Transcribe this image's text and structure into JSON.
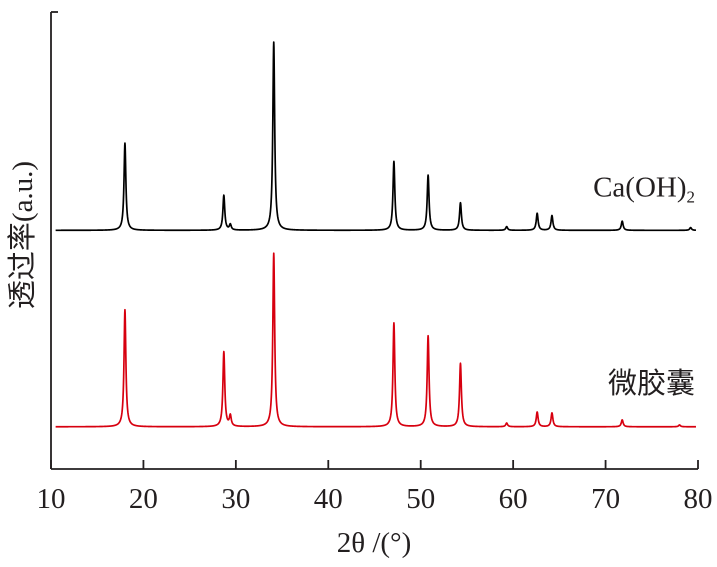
{
  "chart_data": {
    "type": "line",
    "title": "",
    "xlabel": "2θ /(°)",
    "ylabel": "透过率(a.u.)",
    "xlim": [
      10,
      80
    ],
    "ylim": [
      0,
      100
    ],
    "xticks": [
      "10",
      "20",
      "30",
      "40",
      "50",
      "60",
      "70",
      "80"
    ],
    "yticks": [],
    "grid": false,
    "legend": "none (series labelled at right end of each trace)",
    "series": [
      {
        "name": "Ca(OH)2",
        "label_main": "Ca(OH)",
        "label_sub": "2",
        "color": "#000000",
        "baseline": 52,
        "peaks": [
          {
            "x": 18.0,
            "y": 71
          },
          {
            "x": 28.7,
            "y": 59.6
          },
          {
            "x": 29.4,
            "y": 53.2
          },
          {
            "x": 34.1,
            "y": 93
          },
          {
            "x": 47.1,
            "y": 67
          },
          {
            "x": 50.8,
            "y": 64
          },
          {
            "x": 54.3,
            "y": 58
          },
          {
            "x": 59.3,
            "y": 52.8
          },
          {
            "x": 62.6,
            "y": 55.7
          },
          {
            "x": 64.2,
            "y": 55.2
          },
          {
            "x": 71.8,
            "y": 54
          },
          {
            "x": 79.2,
            "y": 52.6
          }
        ]
      },
      {
        "name": "微胶囊",
        "label_main": "微胶囊",
        "label_sub": "",
        "color": "#d7000f",
        "baseline": 9.2,
        "peaks": [
          {
            "x": 18.0,
            "y": 34.7
          },
          {
            "x": 28.7,
            "y": 25.5
          },
          {
            "x": 29.4,
            "y": 11.5
          },
          {
            "x": 34.1,
            "y": 47
          },
          {
            "x": 47.1,
            "y": 31.8
          },
          {
            "x": 50.8,
            "y": 29
          },
          {
            "x": 54.3,
            "y": 23
          },
          {
            "x": 59.3,
            "y": 10.0
          },
          {
            "x": 62.6,
            "y": 12.4
          },
          {
            "x": 64.2,
            "y": 12.2
          },
          {
            "x": 71.8,
            "y": 10.7
          },
          {
            "x": 78.0,
            "y": 9.6
          }
        ]
      }
    ]
  }
}
